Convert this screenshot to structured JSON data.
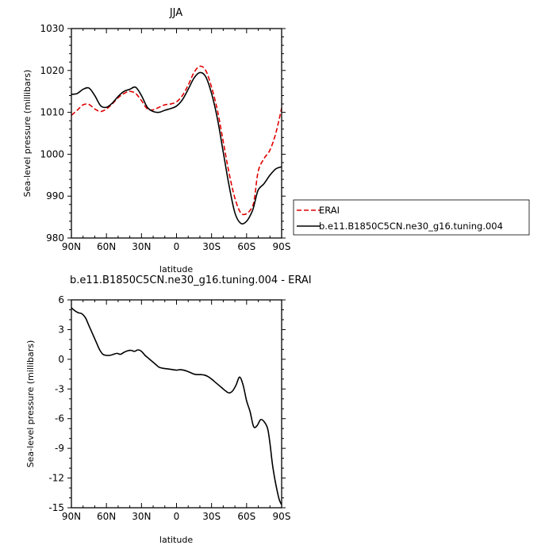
{
  "chart_data": [
    {
      "type": "line",
      "title": "JJA",
      "xlabel": "latitude",
      "ylabel": "Sea-level pressure (millibars)",
      "xlim": [
        90,
        -90
      ],
      "ylim": [
        980,
        1030
      ],
      "x_tick_values": [
        90,
        60,
        30,
        0,
        -30,
        -60,
        -90
      ],
      "x_tick_labels": [
        "90N",
        "60N",
        "30N",
        "0",
        "30S",
        "60S",
        "90S"
      ],
      "y_tick_values": [
        980,
        990,
        1000,
        1010,
        1020,
        1030
      ],
      "y_tick_labels": [
        "980",
        "990",
        "1000",
        "1010",
        "1020",
        "1030"
      ],
      "legend_position": "right-bottom",
      "series": [
        {
          "name": "ERAI",
          "color": "#e00000",
          "dash": "dashed",
          "x": [
            90,
            85,
            80,
            75,
            70,
            65,
            60,
            55,
            50,
            45,
            40,
            35,
            30,
            25,
            20,
            15,
            10,
            5,
            0,
            -5,
            -10,
            -15,
            -20,
            -25,
            -30,
            -35,
            -40,
            -45,
            -50,
            -55,
            -60,
            -65,
            -67,
            -70,
            -75,
            -80,
            -85,
            -90
          ],
          "y": [
            1009.3,
            1010.5,
            1011.8,
            1011.9,
            1010.8,
            1010.2,
            1010.8,
            1012.0,
            1013.5,
            1014.5,
            1015.0,
            1014.5,
            1012.8,
            1010.8,
            1010.6,
            1011.2,
            1011.8,
            1012.0,
            1012.5,
            1014.0,
            1016.5,
            1019.5,
            1021.0,
            1020.0,
            1016.0,
            1010.5,
            1003.0,
            995.5,
            989.5,
            986.0,
            985.8,
            987.5,
            990.0,
            996.0,
            999.0,
            1001.0,
            1005.0,
            1011.0
          ]
        },
        {
          "name": "b.e11.B1850C5CN.ne30_g16.tuning.004",
          "color": "#000000",
          "dash": "solid",
          "x": [
            90,
            85,
            80,
            75,
            70,
            65,
            60,
            55,
            50,
            45,
            40,
            35,
            30,
            25,
            20,
            15,
            10,
            5,
            0,
            -5,
            -10,
            -15,
            -20,
            -25,
            -30,
            -35,
            -40,
            -45,
            -50,
            -55,
            -60,
            -65,
            -67,
            -70,
            -75,
            -80,
            -85,
            -90
          ],
          "y": [
            1014.3,
            1014.5,
            1015.5,
            1015.8,
            1014.0,
            1011.6,
            1011.2,
            1012.2,
            1013.8,
            1015.0,
            1015.5,
            1016.0,
            1014.0,
            1011.2,
            1010.2,
            1010.0,
            1010.5,
            1010.9,
            1011.5,
            1013.0,
            1015.5,
            1018.2,
            1019.5,
            1018.5,
            1014.5,
            1008.5,
            1000.5,
            992.5,
            986.0,
            983.5,
            984.0,
            986.5,
            988.5,
            991.5,
            993.0,
            995.0,
            996.5,
            997.0
          ]
        }
      ]
    },
    {
      "type": "line",
      "title": "b.e11.B1850C5CN.ne30_g16.tuning.004 - ERAI",
      "xlabel": "latitude",
      "ylabel": "Sea-level pressure (millibars)",
      "xlim": [
        90,
        -90
      ],
      "ylim": [
        -15,
        6
      ],
      "x_tick_values": [
        90,
        60,
        30,
        0,
        -30,
        -60,
        -90
      ],
      "x_tick_labels": [
        "90N",
        "60N",
        "30N",
        "0",
        "30S",
        "60S",
        "90S"
      ],
      "y_tick_values": [
        -15,
        -12,
        -9,
        -6,
        -3,
        0,
        3,
        6
      ],
      "y_tick_labels": [
        "-15",
        "-12",
        "-9",
        "-6",
        "-3",
        "0",
        "3",
        "6"
      ],
      "series": [
        {
          "color": "#000000",
          "dash": "solid",
          "x": [
            90,
            87,
            84,
            81,
            78,
            75,
            72,
            69,
            66,
            63,
            60,
            57,
            54,
            51,
            48,
            45,
            42,
            39,
            36,
            33,
            30,
            27,
            24,
            21,
            18,
            15,
            12,
            9,
            6,
            3,
            0,
            -3,
            -6,
            -9,
            -12,
            -15,
            -18,
            -21,
            -24,
            -27,
            -30,
            -33,
            -36,
            -39,
            -42,
            -45,
            -48,
            -51,
            -54,
            -57,
            -60,
            -63,
            -66,
            -69,
            -72,
            -75,
            -78,
            -80,
            -82,
            -84,
            -86,
            -88,
            -90
          ],
          "y": [
            5.2,
            4.9,
            4.7,
            4.6,
            4.2,
            3.4,
            2.6,
            1.8,
            1.0,
            0.5,
            0.4,
            0.4,
            0.5,
            0.6,
            0.5,
            0.7,
            0.85,
            0.9,
            0.8,
            0.95,
            0.8,
            0.4,
            0.1,
            -0.2,
            -0.5,
            -0.8,
            -0.9,
            -0.95,
            -1.0,
            -1.05,
            -1.1,
            -1.05,
            -1.1,
            -1.2,
            -1.35,
            -1.5,
            -1.55,
            -1.55,
            -1.6,
            -1.75,
            -2.0,
            -2.3,
            -2.6,
            -2.9,
            -3.2,
            -3.4,
            -3.2,
            -2.6,
            -1.8,
            -2.6,
            -4.2,
            -5.3,
            -6.8,
            -6.7,
            -6.1,
            -6.3,
            -7.0,
            -8.5,
            -10.5,
            -12.0,
            -13.2,
            -14.2,
            -14.7
          ]
        }
      ]
    }
  ]
}
